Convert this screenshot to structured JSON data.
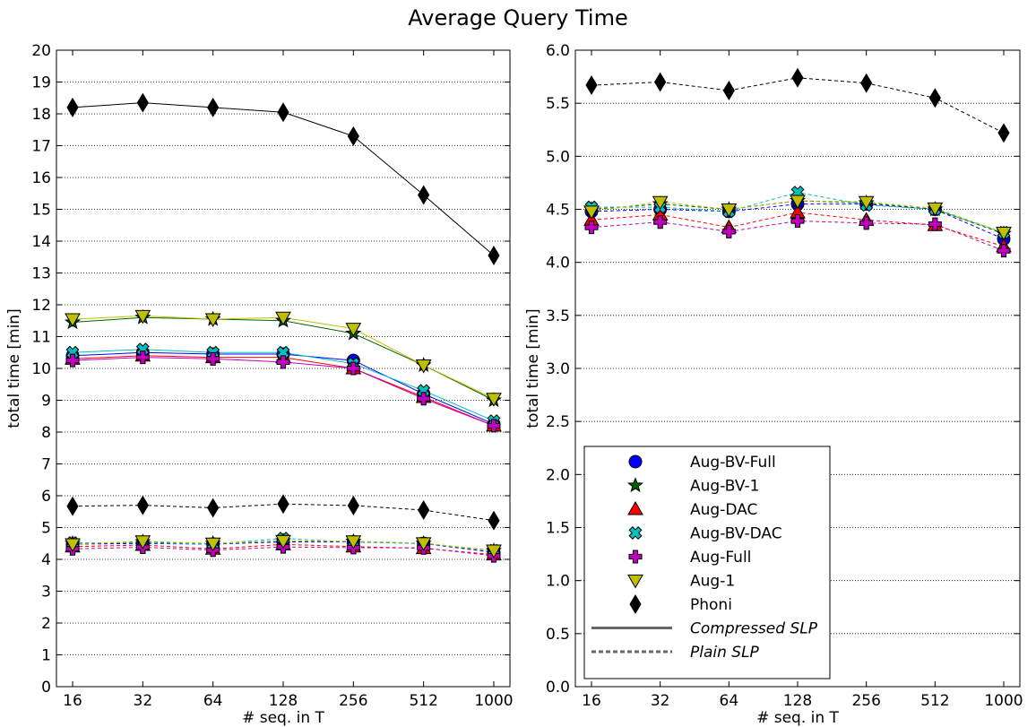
{
  "figure": {
    "title": "Average Query Time"
  },
  "colors": {
    "Aug-BV-Full": "#0000ff",
    "Aug-BV-1": "#006400",
    "Aug-DAC": "#ff0000",
    "Aug-BV-DAC": "#00bfbf",
    "Aug-Full": "#bf00bf",
    "Aug-1": "#bfbf00",
    "Phoni": "#000000"
  },
  "legend": {
    "placement": "lower-left (right panel)",
    "entries": [
      {
        "name": "Aug-BV-Full",
        "marker": "circle"
      },
      {
        "name": "Aug-BV-1",
        "marker": "star"
      },
      {
        "name": "Aug-DAC",
        "marker": "triangle-up"
      },
      {
        "name": "Aug-BV-DAC",
        "marker": "x-filled"
      },
      {
        "name": "Aug-Full",
        "marker": "plus-filled"
      },
      {
        "name": "Aug-1",
        "marker": "triangle-down"
      },
      {
        "name": "Phoni",
        "marker": "diamond"
      }
    ],
    "styles": [
      {
        "name": "Compressed SLP",
        "line": "solid"
      },
      {
        "name": "Plain SLP",
        "line": "dashed"
      }
    ]
  },
  "chart_data": [
    {
      "type": "line",
      "xlabel": "# seq. in T",
      "ylabel": "total time [min]",
      "categories": [
        "16",
        "32",
        "64",
        "128",
        "256",
        "512",
        "1000"
      ],
      "ylim": [
        0,
        20
      ],
      "yticks": [
        "0",
        "1",
        "2",
        "3",
        "4",
        "5",
        "6",
        "7",
        "8",
        "9",
        "10",
        "11",
        "12",
        "13",
        "14",
        "15",
        "16",
        "17",
        "18",
        "19",
        "20"
      ],
      "grid": "horizontal-dotted",
      "series": [
        {
          "name": "Aug-BV-Full",
          "style": "solid",
          "values": [
            10.4,
            10.5,
            10.45,
            10.45,
            10.25,
            9.2,
            8.25
          ]
        },
        {
          "name": "Aug-BV-1",
          "style": "solid",
          "values": [
            11.45,
            11.6,
            11.55,
            11.5,
            11.1,
            10.1,
            9.0
          ]
        },
        {
          "name": "Aug-DAC",
          "style": "solid",
          "values": [
            10.3,
            10.4,
            10.35,
            10.35,
            10.0,
            9.1,
            8.2
          ]
        },
        {
          "name": "Aug-BV-DAC",
          "style": "solid",
          "values": [
            10.5,
            10.6,
            10.5,
            10.5,
            10.15,
            9.3,
            8.35
          ]
        },
        {
          "name": "Aug-Full",
          "style": "solid",
          "values": [
            10.25,
            10.35,
            10.3,
            10.2,
            10.0,
            9.05,
            8.2
          ]
        },
        {
          "name": "Aug-1",
          "style": "solid",
          "values": [
            11.55,
            11.65,
            11.55,
            11.6,
            11.25,
            10.1,
            9.05
          ]
        },
        {
          "name": "Phoni",
          "style": "solid",
          "values": [
            18.2,
            18.35,
            18.2,
            18.05,
            17.3,
            15.45,
            13.55
          ]
        },
        {
          "name": "Aug-BV-Full",
          "style": "dashed",
          "values": [
            4.48,
            4.5,
            4.48,
            4.55,
            4.55,
            4.5,
            4.22
          ]
        },
        {
          "name": "Aug-BV-1",
          "style": "dashed",
          "values": [
            4.5,
            4.55,
            4.5,
            4.58,
            4.56,
            4.5,
            4.27
          ]
        },
        {
          "name": "Aug-DAC",
          "style": "dashed",
          "values": [
            4.4,
            4.45,
            4.33,
            4.47,
            4.4,
            4.35,
            4.15
          ]
        },
        {
          "name": "Aug-BV-DAC",
          "style": "dashed",
          "values": [
            4.52,
            4.52,
            4.48,
            4.66,
            4.54,
            4.5,
            4.28
          ]
        },
        {
          "name": "Aug-Full",
          "style": "dashed",
          "values": [
            4.33,
            4.38,
            4.29,
            4.39,
            4.37,
            4.36,
            4.11
          ]
        },
        {
          "name": "Aug-1",
          "style": "dashed",
          "values": [
            4.48,
            4.57,
            4.5,
            4.58,
            4.57,
            4.51,
            4.28
          ]
        },
        {
          "name": "Phoni",
          "style": "dashed",
          "values": [
            5.67,
            5.7,
            5.62,
            5.74,
            5.69,
            5.55,
            5.22
          ]
        }
      ]
    },
    {
      "type": "line",
      "xlabel": "# seq. in T",
      "ylabel": "total time [min]",
      "categories": [
        "16",
        "32",
        "64",
        "128",
        "256",
        "512",
        "1000"
      ],
      "ylim": [
        0,
        6
      ],
      "yticks": [
        "0.0",
        "0.5",
        "1.0",
        "1.5",
        "2.0",
        "2.5",
        "3.0",
        "3.5",
        "4.0",
        "4.5",
        "5.0",
        "5.5",
        "6.0"
      ],
      "grid": "horizontal-dotted",
      "series": [
        {
          "name": "Aug-BV-Full",
          "style": "dashed",
          "values": [
            4.48,
            4.5,
            4.48,
            4.55,
            4.55,
            4.5,
            4.22
          ]
        },
        {
          "name": "Aug-BV-1",
          "style": "dashed",
          "values": [
            4.5,
            4.55,
            4.5,
            4.58,
            4.56,
            4.5,
            4.27
          ]
        },
        {
          "name": "Aug-DAC",
          "style": "dashed",
          "values": [
            4.4,
            4.45,
            4.33,
            4.47,
            4.4,
            4.35,
            4.15
          ]
        },
        {
          "name": "Aug-BV-DAC",
          "style": "dashed",
          "values": [
            4.52,
            4.52,
            4.48,
            4.66,
            4.54,
            4.5,
            4.28
          ]
        },
        {
          "name": "Aug-Full",
          "style": "dashed",
          "values": [
            4.33,
            4.38,
            4.29,
            4.39,
            4.37,
            4.36,
            4.11
          ]
        },
        {
          "name": "Aug-1",
          "style": "dashed",
          "values": [
            4.48,
            4.57,
            4.5,
            4.58,
            4.57,
            4.51,
            4.28
          ]
        },
        {
          "name": "Phoni",
          "style": "dashed",
          "values": [
            5.67,
            5.7,
            5.62,
            5.74,
            5.69,
            5.55,
            5.22
          ]
        }
      ]
    }
  ]
}
